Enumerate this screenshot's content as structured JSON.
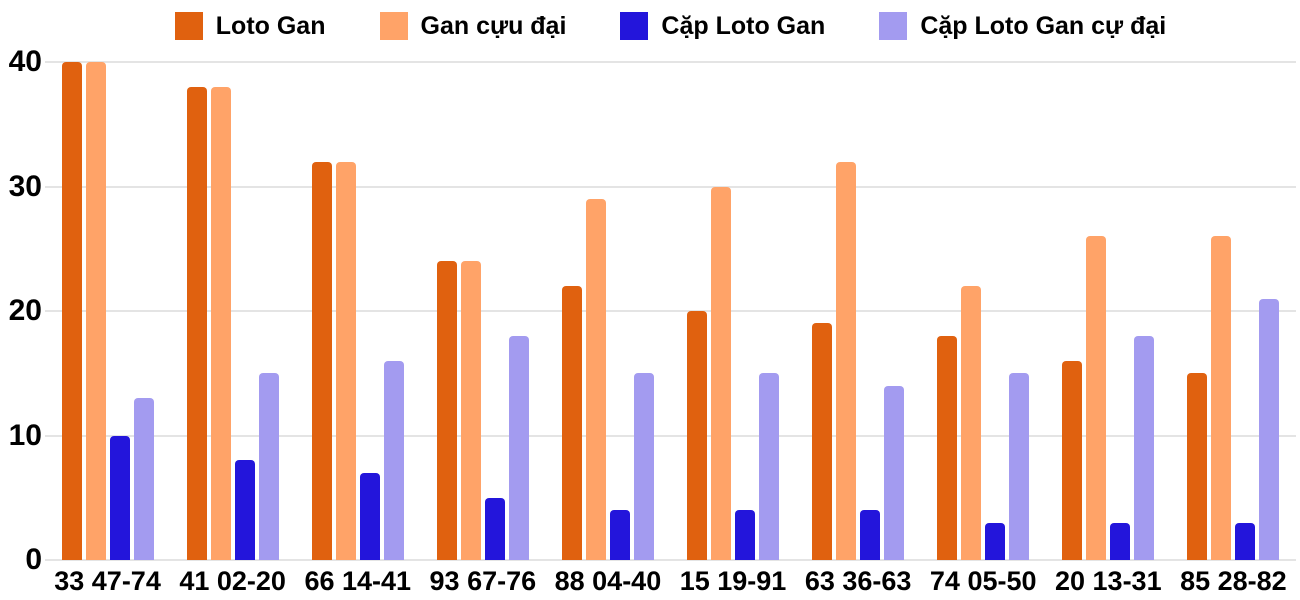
{
  "colors": {
    "background": "#ffffff",
    "gridline": "#e4e4e4",
    "text": "#000000"
  },
  "chart_data": {
    "type": "bar",
    "title": "",
    "xlabel": "",
    "ylabel": "",
    "grid": true,
    "legend_position": "top",
    "ylim": [
      0,
      40
    ],
    "yticks": [
      0,
      10,
      20,
      30,
      40
    ],
    "categories": [
      "33 47-74",
      "41 02-20",
      "66 14-41",
      "93 67-76",
      "88 04-40",
      "15 19-91",
      "63 36-63",
      "74 05-50",
      "20 13-31",
      "85 28-82"
    ],
    "series": [
      {
        "name": "Loto Gan",
        "color": "#e0610f",
        "values": [
          40,
          38,
          32,
          24,
          22,
          20,
          19,
          18,
          16,
          15
        ]
      },
      {
        "name": "Gan cựu đại",
        "color": "#ffa368",
        "values": [
          40,
          38,
          32,
          24,
          29,
          30,
          32,
          22,
          26,
          26
        ]
      },
      {
        "name": "Cặp Loto Gan",
        "color": "#2315db",
        "values": [
          10,
          8,
          7,
          5,
          4,
          4,
          4,
          3,
          3,
          3
        ]
      },
      {
        "name": "Cặp Loto Gan cự đại",
        "color": "#a39bf0",
        "values": [
          13,
          15,
          16,
          18,
          15,
          15,
          14,
          15,
          18,
          21
        ]
      }
    ]
  }
}
